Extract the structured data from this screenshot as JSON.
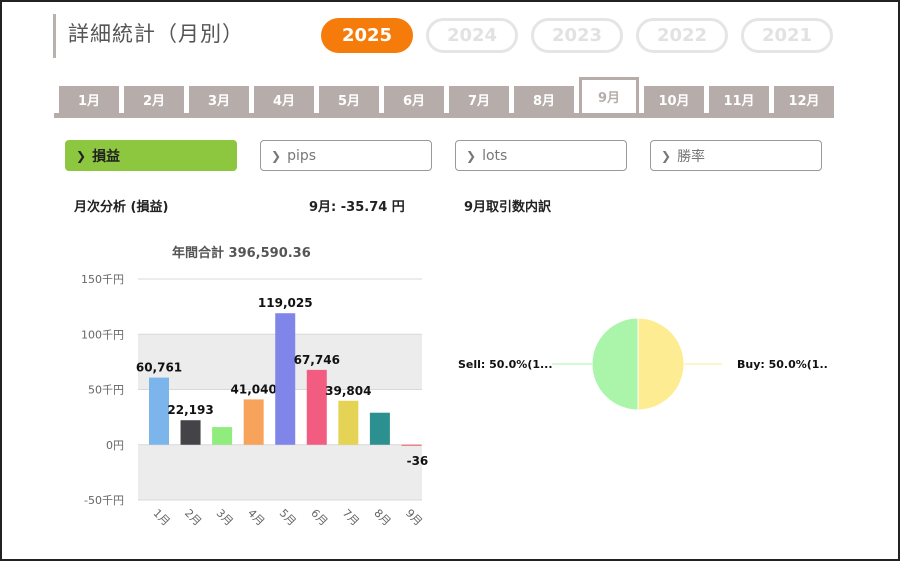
{
  "header": {
    "title": "詳細統計（月別）"
  },
  "years": [
    {
      "label": "2025",
      "active": true
    },
    {
      "label": "2024",
      "active": false
    },
    {
      "label": "2023",
      "active": false
    },
    {
      "label": "2022",
      "active": false
    },
    {
      "label": "2021",
      "active": false
    }
  ],
  "months": [
    "1月",
    "2月",
    "3月",
    "4月",
    "5月",
    "6月",
    "7月",
    "8月",
    "9月",
    "10月",
    "11月",
    "12月"
  ],
  "active_month_index": 8,
  "filters": [
    {
      "label": "損益",
      "active": true
    },
    {
      "label": "pips",
      "active": false
    },
    {
      "label": "lots",
      "active": false
    },
    {
      "label": "勝率",
      "active": false
    }
  ],
  "chevron_icon": "chevron-right-icon",
  "analysis": {
    "left_title": "月次分析 (損益)",
    "month_summary": "9月:  -35.74 円",
    "right_title": "9月取引数内訳",
    "annual_total": "年間合計 396,590.36"
  },
  "chart_data": [
    {
      "type": "bar",
      "categories": [
        "1月",
        "2月",
        "3月",
        "4月",
        "5月",
        "6月",
        "7月",
        "8月",
        "9月"
      ],
      "values": [
        60761,
        22193,
        16000,
        41040,
        119025,
        67746,
        39804,
        29000,
        -36
      ],
      "data_labels": [
        "60,761",
        "22,193",
        "",
        "41,040",
        "119,025",
        "67,746",
        "39,804",
        "",
        "-36"
      ],
      "colors": [
        "#7cb5ec",
        "#434348",
        "#90ed7d",
        "#f7a35c",
        "#8085e9",
        "#f15c80",
        "#e4d354",
        "#2b908f",
        "#f45b5b"
      ],
      "ylim": [
        -50000,
        150000
      ],
      "yticks": [
        {
          "value": 150000,
          "label": "150千円"
        },
        {
          "value": 100000,
          "label": "100千円"
        },
        {
          "value": 50000,
          "label": "50千円"
        },
        {
          "value": 0,
          "label": "0円"
        },
        {
          "value": -50000,
          "label": "-50千円"
        }
      ],
      "band_color": "#ececec",
      "grid_color": "#d8d8d8"
    },
    {
      "type": "pie",
      "slices": [
        {
          "name": "Sell",
          "value": 50.0,
          "label": "Sell: 50.0%(1...",
          "color": "#aaf5aa"
        },
        {
          "name": "Buy",
          "value": 50.0,
          "label": "Buy: 50.0%(1..",
          "color": "#fdec91"
        }
      ]
    }
  ]
}
